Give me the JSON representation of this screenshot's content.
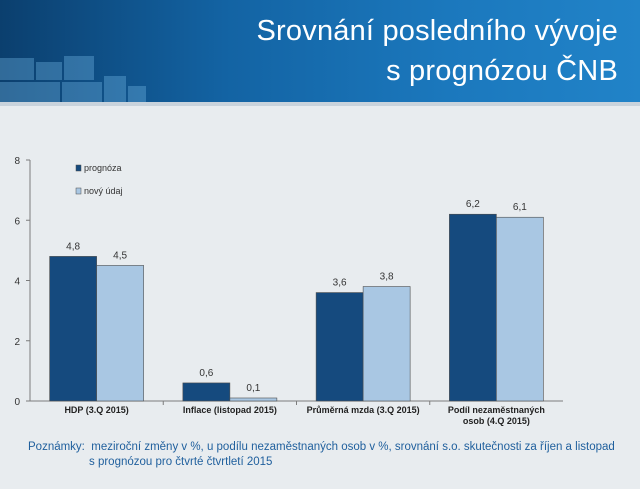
{
  "title": {
    "line1": "Srovnání posledního vývoje",
    "line2": "s prognózou ČNB"
  },
  "colors": {
    "banner": "#1363a3",
    "prognoza": "#154a7e",
    "novy_udaj": "#a9c7e3",
    "note_text": "#1f5f9d"
  },
  "chart_data": {
    "type": "bar",
    "categories": [
      "HDP (3.Q 2015)",
      "Inflace (listopad 2015)",
      "Průměrná mzda (3.Q 2015)",
      [
        "Podíl nezaměstnaných",
        "osob (4.Q 2015)"
      ]
    ],
    "series": [
      {
        "name": "prognóza",
        "values": [
          4.8,
          0.6,
          3.6,
          6.2
        ],
        "labels": [
          "4,8",
          "0,6",
          "3,6",
          "6,2"
        ]
      },
      {
        "name": "nový údaj",
        "values": [
          4.5,
          0.1,
          3.8,
          6.1
        ],
        "labels": [
          "4,5",
          "0,1",
          "3,8",
          "6,1"
        ]
      }
    ],
    "ylim": [
      0,
      8
    ],
    "yticks": [
      "0",
      "2",
      "4",
      "6",
      "8"
    ],
    "legend_position": "top-left",
    "grid": false
  },
  "note": {
    "label": "Poznámky:",
    "line1": "meziroční změny v %, u podílu nezaměstnaných osob v %, srovnání s.o. skutečnosti za říjen a listopad",
    "line2": "s prognózou pro čtvrté čtvrtletí 2015"
  }
}
